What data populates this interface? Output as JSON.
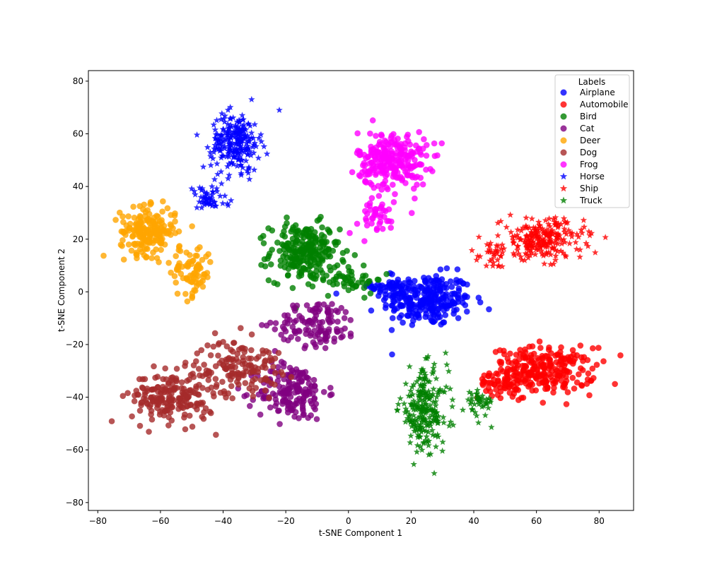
{
  "chart_data": {
    "type": "scatter",
    "xlabel": "t-SNE Component 1",
    "ylabel": "t-SNE Component 2",
    "xlim": [
      -83,
      91
    ],
    "ylim": [
      -83,
      84
    ],
    "xticks": [
      -80,
      -60,
      -40,
      -20,
      0,
      20,
      40,
      60,
      80
    ],
    "yticks": [
      -80,
      -60,
      -40,
      -20,
      0,
      20,
      40,
      60,
      80
    ],
    "xtick_labels": [
      "−80",
      "−60",
      "−40",
      "−20",
      "0",
      "20",
      "40",
      "60",
      "80"
    ],
    "ytick_labels": [
      "−80",
      "−60",
      "−40",
      "−20",
      "0",
      "20",
      "40",
      "60",
      "80"
    ],
    "grid": false,
    "legend": {
      "title": "Labels",
      "placement": "top-right",
      "entries": [
        {
          "label": "Airplane",
          "color": "#0000ff",
          "marker": "circle"
        },
        {
          "label": "Automobile",
          "color": "#ff0000",
          "marker": "circle"
        },
        {
          "label": "Bird",
          "color": "#008000",
          "marker": "circle"
        },
        {
          "label": "Cat",
          "color": "#800080",
          "marker": "circle"
        },
        {
          "label": "Deer",
          "color": "#ffa500",
          "marker": "circle"
        },
        {
          "label": "Dog",
          "color": "#a52a2a",
          "marker": "circle"
        },
        {
          "label": "Frog",
          "color": "#ff00ff",
          "marker": "circle"
        },
        {
          "label": "Horse",
          "color": "#0000ff",
          "marker": "star"
        },
        {
          "label": "Ship",
          "color": "#ff0000",
          "marker": "star"
        },
        {
          "label": "Truck",
          "color": "#008000",
          "marker": "star"
        }
      ]
    },
    "series": [
      {
        "name": "Airplane",
        "color": "#0000ff",
        "marker": "circle",
        "clusters": [
          {
            "center": [
              25,
              -3
            ],
            "spread": [
              13,
              9
            ],
            "count": 260
          },
          {
            "center": [
              14,
              2
            ],
            "spread": [
              6,
              5
            ],
            "count": 40
          }
        ]
      },
      {
        "name": "Automobile",
        "color": "#ff0000",
        "marker": "circle",
        "clusters": [
          {
            "center": [
              62,
              -30
            ],
            "spread": [
              15,
              8
            ],
            "count": 260
          },
          {
            "center": [
              48,
              -35
            ],
            "spread": [
              6,
              5
            ],
            "count": 40
          }
        ]
      },
      {
        "name": "Bird",
        "color": "#008000",
        "marker": "circle",
        "clusters": [
          {
            "center": [
              -14,
              15
            ],
            "spread": [
              10,
              10
            ],
            "count": 240
          },
          {
            "center": [
              0,
              5
            ],
            "spread": [
              10,
              5
            ],
            "count": 50
          }
        ]
      },
      {
        "name": "Cat",
        "color": "#800080",
        "marker": "circle",
        "clusters": [
          {
            "center": [
              -18,
              -38
            ],
            "spread": [
              10,
              10
            ],
            "count": 170
          },
          {
            "center": [
              -10,
              -12
            ],
            "spread": [
              12,
              8
            ],
            "count": 120
          }
        ]
      },
      {
        "name": "Deer",
        "color": "#ffa500",
        "marker": "circle",
        "clusters": [
          {
            "center": [
              -64,
              23
            ],
            "spread": [
              8,
              8
            ],
            "count": 200
          },
          {
            "center": [
              -50,
              8
            ],
            "spread": [
              6,
              9
            ],
            "count": 80
          }
        ]
      },
      {
        "name": "Dog",
        "color": "#a52a2a",
        "marker": "circle",
        "clusters": [
          {
            "center": [
              -56,
              -40
            ],
            "spread": [
              12,
              9
            ],
            "count": 200
          },
          {
            "center": [
              -35,
              -28
            ],
            "spread": [
              12,
              9
            ],
            "count": 140
          }
        ]
      },
      {
        "name": "Frog",
        "color": "#ff00ff",
        "marker": "circle",
        "clusters": [
          {
            "center": [
              14,
              50
            ],
            "spread": [
              10,
              10
            ],
            "count": 260
          },
          {
            "center": [
              8,
              28
            ],
            "spread": [
              8,
              6
            ],
            "count": 40
          }
        ]
      },
      {
        "name": "Horse",
        "color": "#0000ff",
        "marker": "star",
        "clusters": [
          {
            "center": [
              -36,
              57
            ],
            "spread": [
              7,
              10
            ],
            "count": 230
          },
          {
            "center": [
              -45,
              35
            ],
            "spread": [
              6,
              5
            ],
            "count": 50
          }
        ]
      },
      {
        "name": "Ship",
        "color": "#ff0000",
        "marker": "star",
        "clusters": [
          {
            "center": [
              62,
              20
            ],
            "spread": [
              12,
              7
            ],
            "count": 230
          },
          {
            "center": [
              47,
              14
            ],
            "spread": [
              5,
              4
            ],
            "count": 30
          }
        ]
      },
      {
        "name": "Truck",
        "color": "#008000",
        "marker": "star",
        "clusters": [
          {
            "center": [
              24,
              -45
            ],
            "spread": [
              7,
              14
            ],
            "count": 230
          },
          {
            "center": [
              42,
              -42
            ],
            "spread": [
              4,
              5
            ],
            "count": 40
          }
        ]
      }
    ]
  }
}
